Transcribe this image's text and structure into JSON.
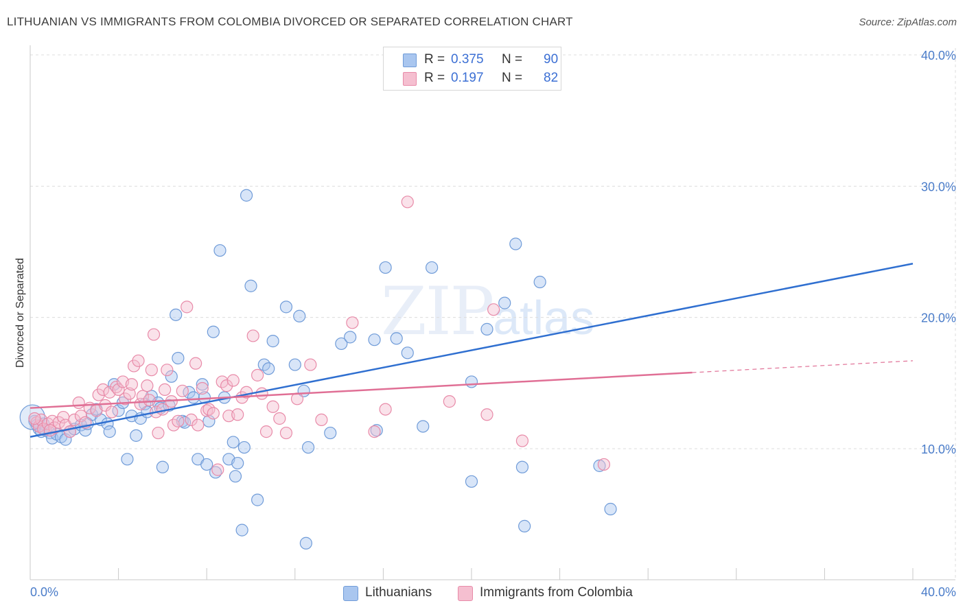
{
  "title": "LITHUANIAN VS IMMIGRANTS FROM COLOMBIA DIVORCED OR SEPARATED CORRELATION CHART",
  "source": "Source: ZipAtlas.com",
  "watermark": {
    "zip": "ZIP",
    "atlas": "atlas"
  },
  "legend": {
    "r_label": "R =",
    "n_label": "N =",
    "series": [
      {
        "r": "0.375",
        "n": "90",
        "color": "#a9c6ef",
        "stroke": "#6f9bd8"
      },
      {
        "r": "0.197",
        "n": "82",
        "color": "#f5bfd0",
        "stroke": "#e88aa8"
      }
    ]
  },
  "bottom_legend": [
    "Lithuanians",
    "Immigrants from Colombia"
  ],
  "chart_data": {
    "type": "scatter",
    "title": "LITHUANIAN VS IMMIGRANTS FROM COLOMBIA DIVORCED OR SEPARATED CORRELATION CHART",
    "xlabel": "",
    "ylabel": "Divorced or Separated",
    "xlim": [
      0,
      40
    ],
    "ylim": [
      0,
      41.5
    ],
    "x_tick_labels": [
      "0.0%",
      "40.0%"
    ],
    "y_ticks": [
      10,
      20,
      30,
      40
    ],
    "y_tick_labels": [
      "10.0%",
      "20.0%",
      "30.0%",
      "40.0%"
    ],
    "grid": true,
    "legend_position": "top-center",
    "series": [
      {
        "name": "Lithuanians",
        "color": "#6f9bd8",
        "fill": "#a9c6ef",
        "trend": {
          "x": [
            0,
            40
          ],
          "y": [
            10.9,
            24.1
          ],
          "color": "#2f6fd0"
        },
        "points": [
          [
            0.2,
            12.1
          ],
          [
            0.3,
            11.8
          ],
          [
            0.4,
            11.5
          ],
          [
            0.5,
            11.3
          ],
          [
            0.6,
            11.9
          ],
          [
            0.7,
            11.4
          ],
          [
            0.9,
            11.2
          ],
          [
            1.0,
            10.8
          ],
          [
            1.2,
            11.1
          ],
          [
            1.4,
            10.9
          ],
          [
            1.6,
            10.7
          ],
          [
            1.8,
            11.3
          ],
          [
            2.0,
            11.5
          ],
          [
            2.3,
            11.8
          ],
          [
            2.5,
            11.4
          ],
          [
            2.6,
            11.9
          ],
          [
            2.8,
            12.6
          ],
          [
            3.0,
            13.0
          ],
          [
            3.2,
            12.2
          ],
          [
            3.5,
            11.9
          ],
          [
            3.6,
            11.3
          ],
          [
            3.8,
            14.9
          ],
          [
            4.0,
            12.9
          ],
          [
            4.2,
            13.5
          ],
          [
            4.4,
            9.2
          ],
          [
            4.6,
            12.5
          ],
          [
            4.8,
            11.0
          ],
          [
            5.0,
            12.3
          ],
          [
            5.2,
            13.4
          ],
          [
            5.3,
            12.8
          ],
          [
            5.5,
            14.0
          ],
          [
            5.8,
            13.5
          ],
          [
            5.9,
            13.1
          ],
          [
            6.0,
            8.6
          ],
          [
            6.3,
            13.3
          ],
          [
            6.4,
            15.5
          ],
          [
            6.6,
            20.2
          ],
          [
            6.7,
            16.9
          ],
          [
            6.9,
            12.1
          ],
          [
            7.0,
            12.0
          ],
          [
            7.2,
            14.3
          ],
          [
            7.4,
            13.9
          ],
          [
            7.6,
            9.2
          ],
          [
            7.8,
            14.9
          ],
          [
            7.9,
            13.9
          ],
          [
            8.0,
            8.8
          ],
          [
            8.1,
            12.1
          ],
          [
            8.3,
            18.9
          ],
          [
            8.4,
            8.2
          ],
          [
            8.6,
            25.1
          ],
          [
            8.8,
            13.9
          ],
          [
            9.0,
            9.2
          ],
          [
            9.2,
            10.5
          ],
          [
            9.3,
            7.9
          ],
          [
            9.4,
            8.9
          ],
          [
            9.6,
            3.8
          ],
          [
            9.7,
            10.1
          ],
          [
            9.8,
            29.3
          ],
          [
            10.0,
            22.4
          ],
          [
            10.3,
            6.1
          ],
          [
            10.6,
            16.4
          ],
          [
            10.8,
            16.1
          ],
          [
            11.0,
            18.2
          ],
          [
            11.6,
            20.8
          ],
          [
            12.0,
            16.4
          ],
          [
            12.2,
            20.1
          ],
          [
            12.4,
            14.4
          ],
          [
            12.5,
            2.8
          ],
          [
            12.6,
            10.1
          ],
          [
            13.6,
            11.2
          ],
          [
            14.1,
            18.0
          ],
          [
            14.5,
            18.5
          ],
          [
            15.6,
            18.3
          ],
          [
            15.7,
            11.4
          ],
          [
            16.1,
            23.8
          ],
          [
            16.6,
            18.4
          ],
          [
            17.1,
            17.3
          ],
          [
            17.8,
            11.7
          ],
          [
            18.2,
            23.8
          ],
          [
            19.2,
            38.9
          ],
          [
            20.0,
            15.1
          ],
          [
            20.0,
            7.5
          ],
          [
            20.7,
            19.1
          ],
          [
            21.5,
            21.1
          ],
          [
            22.0,
            25.6
          ],
          [
            22.3,
            8.6
          ],
          [
            22.4,
            4.1
          ],
          [
            23.1,
            22.7
          ],
          [
            25.8,
            8.7
          ],
          [
            26.3,
            5.4
          ]
        ]
      },
      {
        "name": "Immigrants from Colombia",
        "color": "#e88aa8",
        "fill": "#f5bfd0",
        "trend": {
          "x": [
            0,
            30
          ],
          "y": [
            13.1,
            15.8
          ],
          "dash_to": {
            "x": 40,
            "y": 16.7
          },
          "color": "#e06f95"
        },
        "points": [
          [
            0.3,
            12.0
          ],
          [
            0.4,
            11.7
          ],
          [
            0.5,
            12.2
          ],
          [
            0.6,
            11.5
          ],
          [
            0.8,
            11.9
          ],
          [
            1.0,
            12.1
          ],
          [
            1.1,
            11.6
          ],
          [
            1.3,
            12.0
          ],
          [
            1.5,
            12.4
          ],
          [
            1.6,
            11.8
          ],
          [
            1.8,
            11.3
          ],
          [
            2.0,
            12.2
          ],
          [
            2.2,
            13.5
          ],
          [
            2.3,
            12.5
          ],
          [
            2.5,
            12.0
          ],
          [
            2.7,
            13.1
          ],
          [
            3.0,
            12.9
          ],
          [
            3.1,
            14.1
          ],
          [
            3.3,
            14.5
          ],
          [
            3.4,
            13.3
          ],
          [
            3.6,
            14.3
          ],
          [
            3.7,
            12.8
          ],
          [
            3.9,
            14.7
          ],
          [
            4.0,
            14.5
          ],
          [
            4.2,
            15.1
          ],
          [
            4.3,
            13.8
          ],
          [
            4.5,
            14.2
          ],
          [
            4.6,
            14.9
          ],
          [
            4.7,
            16.3
          ],
          [
            4.9,
            16.7
          ],
          [
            5.0,
            13.4
          ],
          [
            5.1,
            14.0
          ],
          [
            5.3,
            14.8
          ],
          [
            5.4,
            13.7
          ],
          [
            5.5,
            16.0
          ],
          [
            5.6,
            18.7
          ],
          [
            5.7,
            12.8
          ],
          [
            5.8,
            11.2
          ],
          [
            6.0,
            13.0
          ],
          [
            6.1,
            14.5
          ],
          [
            6.2,
            16.0
          ],
          [
            6.4,
            13.6
          ],
          [
            6.5,
            11.8
          ],
          [
            6.7,
            12.1
          ],
          [
            6.9,
            14.4
          ],
          [
            7.1,
            20.8
          ],
          [
            7.3,
            12.2
          ],
          [
            7.5,
            16.5
          ],
          [
            7.6,
            11.8
          ],
          [
            7.8,
            14.6
          ],
          [
            8.0,
            12.9
          ],
          [
            8.1,
            13.0
          ],
          [
            8.3,
            12.7
          ],
          [
            8.5,
            8.4
          ],
          [
            8.7,
            15.1
          ],
          [
            8.9,
            14.8
          ],
          [
            9.0,
            12.5
          ],
          [
            9.2,
            15.2
          ],
          [
            9.4,
            12.6
          ],
          [
            9.6,
            13.9
          ],
          [
            9.8,
            14.3
          ],
          [
            10.1,
            18.6
          ],
          [
            10.3,
            15.6
          ],
          [
            10.5,
            14.2
          ],
          [
            10.7,
            11.3
          ],
          [
            11.0,
            13.2
          ],
          [
            11.3,
            12.3
          ],
          [
            11.6,
            11.2
          ],
          [
            12.1,
            13.8
          ],
          [
            12.7,
            16.4
          ],
          [
            13.2,
            12.2
          ],
          [
            14.6,
            19.6
          ],
          [
            15.6,
            11.3
          ],
          [
            16.1,
            13.0
          ],
          [
            17.1,
            28.8
          ],
          [
            19.0,
            13.6
          ],
          [
            20.7,
            12.6
          ],
          [
            21.0,
            20.6
          ],
          [
            22.3,
            10.6
          ],
          [
            26.0,
            8.8
          ],
          [
            0.2,
            12.3
          ],
          [
            0.9,
            11.4
          ]
        ]
      }
    ]
  }
}
